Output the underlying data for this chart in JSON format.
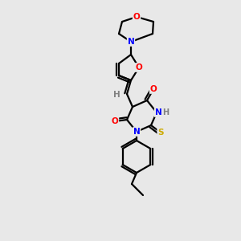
{
  "bg_color": "#e8e8e8",
  "bond_color": "#000000",
  "atom_colors": {
    "O": "#ff0000",
    "N": "#0000ff",
    "S": "#ccaa00",
    "C": "#000000",
    "H": "#808080"
  },
  "figsize": [
    3.0,
    3.0
  ],
  "dpi": 100,
  "lw": 1.6,
  "fontsize": 7.5
}
